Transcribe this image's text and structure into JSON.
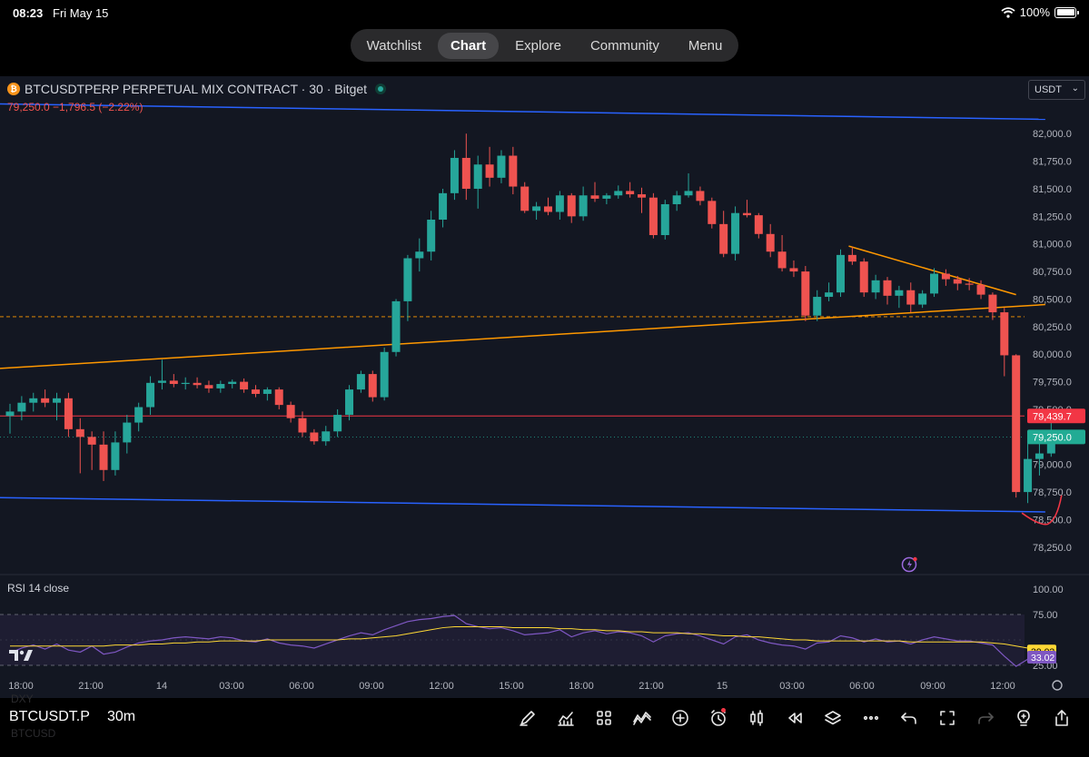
{
  "status_bar": {
    "time": "08:23",
    "date": "Fri May 15",
    "battery": "100%"
  },
  "nav": {
    "tabs": [
      {
        "label": "Watchlist",
        "active": false
      },
      {
        "label": "Chart",
        "active": true
      },
      {
        "label": "Explore",
        "active": false
      },
      {
        "label": "Community",
        "active": false
      },
      {
        "label": "Menu",
        "active": false
      }
    ]
  },
  "header": {
    "title": "BTCUSDTPERP PERPETUAL MIX CONTRACT · 30 · Bitget",
    "price_change": "79,250.0  −1,796.5 (−2.22%)",
    "currency": "USDT"
  },
  "indicator": {
    "label": "RSI 14 close"
  },
  "price_axis": {
    "ticks": [
      "82,000.0",
      "81,750.0",
      "81,500.0",
      "81,250.0",
      "81,000.0",
      "80,750.0",
      "80,500.0",
      "80,250.0",
      "80,000.0",
      "79,750.0",
      "79,500.0",
      "79,000.0",
      "78,750.0",
      "78,500.0",
      "78,250.0"
    ],
    "tick_values": [
      82000,
      81750,
      81500,
      81250,
      81000,
      80750,
      80500,
      80250,
      80000,
      79750,
      79500,
      79000,
      78750,
      78500,
      78250
    ],
    "marker_red": {
      "label": "79,439.7",
      "value": 79439.7,
      "color": "#f23645"
    },
    "marker_green": {
      "label": "79,250.0",
      "value": 79250,
      "color": "#22ab94"
    }
  },
  "rsi_axis": {
    "ticks": [
      "100.00",
      "75.00",
      "25.00"
    ],
    "tick_values": [
      100,
      75,
      25
    ],
    "marker_yellow": {
      "label": "39.03",
      "value": 39.03,
      "color": "#fdd835"
    },
    "marker_purple": {
      "label": "33.02",
      "value": 33.02,
      "color": "#7e57c2"
    }
  },
  "time_axis": {
    "labels": [
      "18:00",
      "21:00",
      "14",
      "03:00",
      "06:00",
      "09:00",
      "12:00",
      "15:00",
      "18:00",
      "21:00",
      "15",
      "03:00",
      "06:00",
      "09:00",
      "12:00"
    ]
  },
  "chart_data": {
    "type": "candlestick",
    "symbol": "BTCUSDTPERP",
    "interval": "30",
    "ylim": [
      78150,
      82150
    ],
    "horizontal_lines": [
      79439.7,
      80340,
      79250
    ],
    "candles": [
      [
        79440,
        79550,
        79280,
        79480
      ],
      [
        79480,
        79620,
        79400,
        79560
      ],
      [
        79560,
        79650,
        79480,
        79600
      ],
      [
        79600,
        79680,
        79520,
        79560
      ],
      [
        79560,
        79650,
        79400,
        79600
      ],
      [
        79600,
        79650,
        79250,
        79320
      ],
      [
        79320,
        79420,
        78920,
        79250
      ],
      [
        79250,
        79300,
        78950,
        79180
      ],
      [
        79180,
        79300,
        78850,
        78950
      ],
      [
        78950,
        79300,
        78900,
        79200
      ],
      [
        79200,
        79450,
        79100,
        79380
      ],
      [
        79380,
        79560,
        79300,
        79520
      ],
      [
        79520,
        79800,
        79450,
        79740
      ],
      [
        79740,
        79950,
        79680,
        79760
      ],
      [
        79760,
        79820,
        79700,
        79730
      ],
      [
        79730,
        79790,
        79680,
        79740
      ],
      [
        79740,
        79790,
        79690,
        79720
      ],
      [
        79720,
        79760,
        79650,
        79690
      ],
      [
        79690,
        79760,
        79650,
        79730
      ],
      [
        79730,
        79770,
        79690,
        79750
      ],
      [
        79750,
        79780,
        79650,
        79680
      ],
      [
        79680,
        79720,
        79610,
        79640
      ],
      [
        79640,
        79700,
        79580,
        79680
      ],
      [
        79680,
        79700,
        79500,
        79540
      ],
      [
        79540,
        79570,
        79380,
        79420
      ],
      [
        79420,
        79480,
        79250,
        79290
      ],
      [
        79290,
        79320,
        79180,
        79210
      ],
      [
        79210,
        79350,
        79170,
        79300
      ],
      [
        79300,
        79500,
        79250,
        79450
      ],
      [
        79450,
        79720,
        79400,
        79680
      ],
      [
        79680,
        79850,
        79650,
        79820
      ],
      [
        79820,
        79850,
        79570,
        79610
      ],
      [
        79610,
        80060,
        79580,
        80020
      ],
      [
        80020,
        80500,
        79980,
        80480
      ],
      [
        80480,
        80900,
        80300,
        80870
      ],
      [
        80870,
        81050,
        80750,
        80930
      ],
      [
        80930,
        81300,
        80850,
        81220
      ],
      [
        81220,
        81500,
        81150,
        81460
      ],
      [
        81460,
        81850,
        81400,
        81780
      ],
      [
        81780,
        82000,
        81400,
        81500
      ],
      [
        81500,
        81800,
        81320,
        81720
      ],
      [
        81720,
        81880,
        81520,
        81600
      ],
      [
        81600,
        81850,
        81550,
        81800
      ],
      [
        81800,
        81880,
        81450,
        81520
      ],
      [
        81520,
        81560,
        81280,
        81300
      ],
      [
        81300,
        81380,
        81220,
        81340
      ],
      [
        81340,
        81420,
        81260,
        81290
      ],
      [
        81290,
        81480,
        81220,
        81440
      ],
      [
        81440,
        81460,
        81190,
        81250
      ],
      [
        81250,
        81520,
        81210,
        81440
      ],
      [
        81440,
        81560,
        81380,
        81410
      ],
      [
        81410,
        81460,
        81360,
        81440
      ],
      [
        81440,
        81530,
        81410,
        81480
      ],
      [
        81480,
        81560,
        81420,
        81450
      ],
      [
        81450,
        81510,
        81280,
        81420
      ],
      [
        81420,
        81460,
        81050,
        81080
      ],
      [
        81080,
        81400,
        81040,
        81360
      ],
      [
        81360,
        81480,
        81300,
        81440
      ],
      [
        81440,
        81640,
        81420,
        81480
      ],
      [
        81480,
        81520,
        81350,
        81390
      ],
      [
        81390,
        81420,
        81140,
        81180
      ],
      [
        81180,
        81300,
        80880,
        80910
      ],
      [
        80910,
        81340,
        80850,
        81280
      ],
      [
        81280,
        81400,
        81240,
        81260
      ],
      [
        81260,
        81280,
        81050,
        81090
      ],
      [
        81090,
        81180,
        80880,
        80930
      ],
      [
        80930,
        81080,
        80750,
        80780
      ],
      [
        80780,
        80850,
        80700,
        80750
      ],
      [
        80750,
        80800,
        80300,
        80350
      ],
      [
        80350,
        80580,
        80300,
        80520
      ],
      [
        80520,
        80650,
        80480,
        80560
      ],
      [
        80560,
        80950,
        80520,
        80900
      ],
      [
        80900,
        80970,
        80810,
        80840
      ],
      [
        80840,
        80870,
        80520,
        80560
      ],
      [
        80560,
        80720,
        80500,
        80670
      ],
      [
        80670,
        80700,
        80450,
        80530
      ],
      [
        80530,
        80620,
        80420,
        80580
      ],
      [
        80580,
        80650,
        80380,
        80450
      ],
      [
        80450,
        80580,
        80420,
        80550
      ],
      [
        80550,
        80780,
        80520,
        80730
      ],
      [
        80730,
        80770,
        80620,
        80680
      ],
      [
        80680,
        80710,
        80580,
        80640
      ],
      [
        80640,
        80690,
        80580,
        80630
      ],
      [
        80630,
        80670,
        80500,
        80540
      ],
      [
        80540,
        80560,
        80310,
        80380
      ],
      [
        80380,
        80420,
        79800,
        79990
      ],
      [
        79990,
        80000,
        78700,
        78750
      ],
      [
        78750,
        79300,
        78650,
        79050
      ],
      [
        79050,
        79200,
        78900,
        79100
      ],
      [
        79100,
        79400,
        79070,
        79250
      ]
    ],
    "rsi": [
      37,
      42,
      45,
      41,
      46,
      40,
      38,
      44,
      36,
      38,
      43,
      47,
      49,
      50,
      52,
      53,
      52,
      51,
      53,
      52,
      49,
      48,
      51,
      47,
      45,
      44,
      42,
      46,
      50,
      54,
      57,
      55,
      60,
      64,
      68,
      70,
      71,
      73,
      74,
      66,
      63,
      61,
      62,
      59,
      55,
      56,
      57,
      60,
      53,
      57,
      59,
      56,
      58,
      57,
      54,
      48,
      54,
      56,
      57,
      54,
      50,
      46,
      53,
      55,
      50,
      47,
      45,
      44,
      41,
      47,
      48,
      54,
      52,
      48,
      51,
      48,
      49,
      46,
      50,
      53,
      51,
      49,
      49,
      47,
      45,
      34,
      24,
      31,
      34,
      36
    ],
    "rsi_ma": [
      44,
      44,
      44,
      44,
      44,
      44,
      44,
      44,
      44,
      45,
      45,
      45,
      46,
      46,
      47,
      47,
      48,
      48,
      49,
      49,
      49,
      49,
      50,
      50,
      50,
      50,
      50,
      50,
      50,
      51,
      51,
      52,
      53,
      54,
      56,
      58,
      60,
      62,
      63,
      63,
      63,
      63,
      63,
      62,
      62,
      62,
      62,
      61,
      61,
      60,
      60,
      59,
      59,
      58,
      58,
      57,
      57,
      57,
      56,
      56,
      55,
      54,
      54,
      53,
      53,
      52,
      51,
      50,
      50,
      49,
      49,
      49,
      49,
      49,
      49,
      49,
      49,
      48,
      48,
      48,
      48,
      48,
      48,
      48,
      47,
      46,
      44,
      42,
      41,
      40
    ],
    "trendlines": [
      {
        "color": "#2962ff",
        "points": [
          [
            -1,
            82270
          ],
          [
            88.5,
            82130
          ]
        ]
      },
      {
        "color": "#2962ff",
        "points": [
          [
            -1,
            78700
          ],
          [
            88.5,
            78570
          ]
        ]
      },
      {
        "color": "#ff9800",
        "points": [
          [
            -1,
            79870
          ],
          [
            88.5,
            80450
          ]
        ]
      },
      {
        "color": "#ff9800",
        "points": [
          [
            71.7,
            80980
          ],
          [
            86.0,
            80540
          ]
        ]
      }
    ],
    "annotation_curve": {
      "color": "#f23645"
    }
  }
}
